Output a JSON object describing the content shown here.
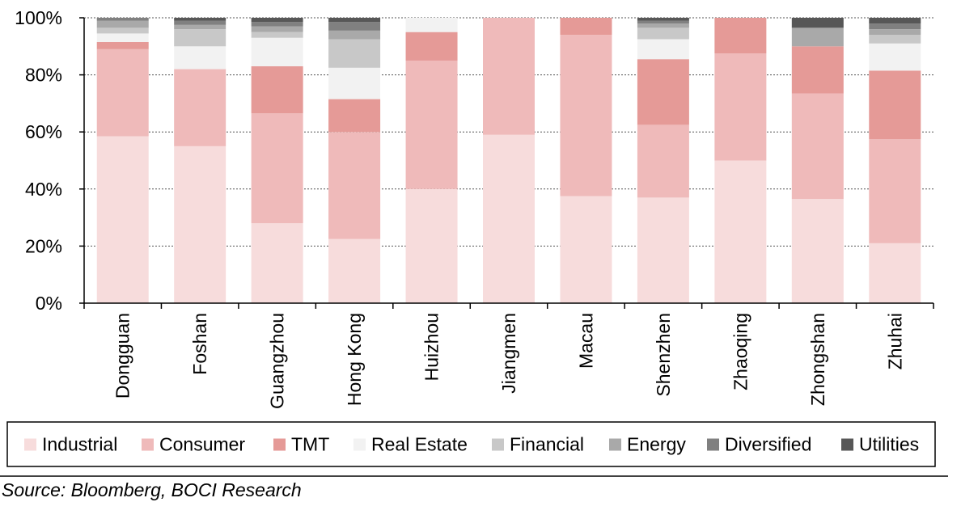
{
  "chart_data": {
    "type": "bar",
    "stacked": true,
    "percent": true,
    "title": "",
    "xlabel": "",
    "ylabel": "",
    "ylim": [
      0,
      100
    ],
    "yticks": [
      0,
      20,
      40,
      60,
      80,
      100
    ],
    "ytick_suffix": "%",
    "grid": "horizontal-dotted",
    "legend_position": "bottom",
    "categories": [
      "Dongguan",
      "Foshan",
      "Guangzhou",
      "Hong Kong",
      "Huizhou",
      "Jiangmen",
      "Macau",
      "Shenzhen",
      "Zhaoqing",
      "Zhongshan",
      "Zhuhai"
    ],
    "series": [
      {
        "name": "Industrial",
        "color": "#f7dcdc",
        "values": [
          58.5,
          55,
          28,
          22.5,
          40,
          59,
          37.5,
          37,
          50,
          36.5,
          21
        ]
      },
      {
        "name": "Consumer",
        "color": "#efbaba",
        "values": [
          30.5,
          27,
          38.5,
          37.5,
          45,
          41,
          56.5,
          25.5,
          37.5,
          37,
          36.5
        ]
      },
      {
        "name": "TMT",
        "color": "#e59a97",
        "values": [
          2.5,
          0,
          16.5,
          11.5,
          10,
          0,
          6,
          23,
          12.5,
          16.5,
          24
        ]
      },
      {
        "name": "Real Estate",
        "color": "#f2f2f2",
        "values": [
          3,
          8,
          10,
          11,
          5,
          0,
          0,
          7,
          0,
          0,
          9.5
        ]
      },
      {
        "name": "Financial",
        "color": "#c8c8c8",
        "values": [
          2,
          6,
          2,
          10,
          0,
          0,
          0,
          4,
          0,
          0,
          3
        ]
      },
      {
        "name": "Energy",
        "color": "#a9a9a9",
        "values": [
          2.5,
          1.5,
          2,
          3,
          0,
          0,
          0,
          1.5,
          0,
          6.5,
          2
        ]
      },
      {
        "name": "Diversified",
        "color": "#808080",
        "values": [
          1,
          1.5,
          1.5,
          3,
          0,
          0,
          0,
          1,
          0,
          0,
          2
        ]
      },
      {
        "name": "Utilities",
        "color": "#575757",
        "values": [
          0,
          1,
          1.5,
          1.5,
          0,
          0,
          0,
          1,
          0,
          3.5,
          2
        ]
      }
    ]
  },
  "source": "Source: Bloomberg, BOCI Research"
}
